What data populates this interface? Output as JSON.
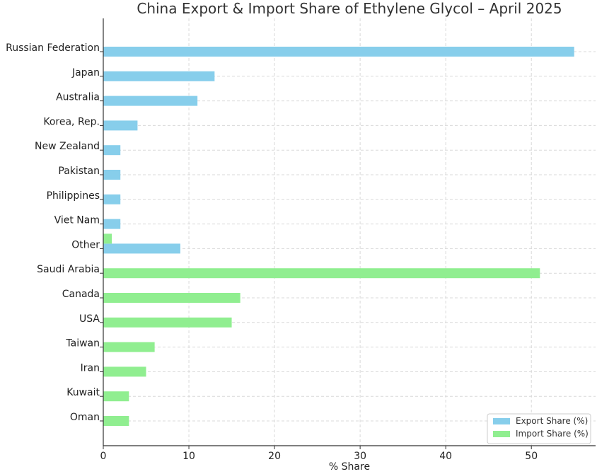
{
  "chart_data": {
    "type": "bar",
    "orientation": "horizontal",
    "title": "China Export & Import Share of Ethylene Glycol – April 2025",
    "xlabel": "% Share",
    "ylabel": "",
    "xlim": [
      0,
      57.5
    ],
    "xticks": [
      0,
      10,
      20,
      30,
      40,
      50
    ],
    "grid": true,
    "legend_position": "bottom-right",
    "categories": [
      "Russian Federation",
      "Japan",
      "Australia",
      "Korea, Rep.",
      "New Zealand",
      "Pakistan",
      "Philippines",
      "Viet Nam",
      "Other",
      "Saudi Arabia",
      "Canada",
      "USA",
      "Taiwan",
      "Iran",
      "Kuwait",
      "Oman"
    ],
    "series": [
      {
        "name": "Export Share (%)",
        "color": "#87CEEB",
        "values": [
          55,
          13,
          11,
          4,
          2,
          2,
          2,
          2,
          9,
          0,
          0,
          0,
          0,
          0,
          0,
          0
        ]
      },
      {
        "name": "Import Share (%)",
        "color": "#90EE90",
        "values": [
          0,
          0,
          0,
          0,
          0,
          0,
          0,
          0,
          1,
          51,
          16,
          15,
          6,
          5,
          3,
          3
        ]
      }
    ]
  }
}
